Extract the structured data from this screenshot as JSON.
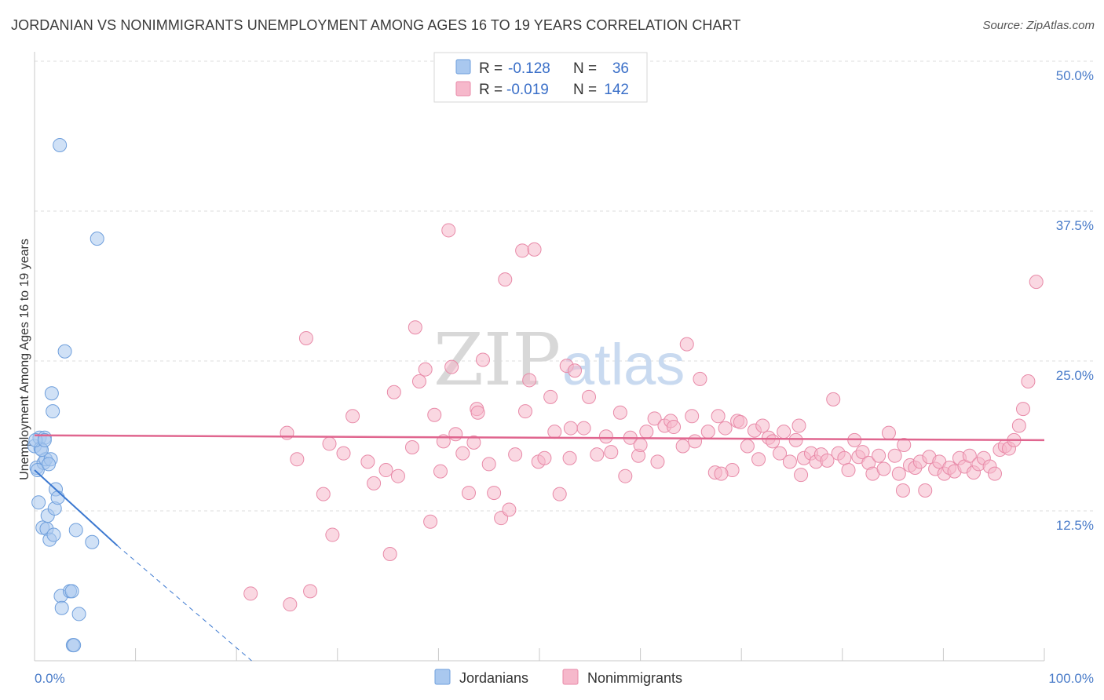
{
  "header": {
    "title": "JORDANIAN VS NONIMMIGRANTS UNEMPLOYMENT AMONG AGES 16 TO 19 YEARS CORRELATION CHART",
    "source": "Source: ZipAtlas.com"
  },
  "watermark": {
    "zip": "ZIP",
    "atlas": "atlas"
  },
  "legend_top": {
    "rows": [
      {
        "r_label": "R =",
        "r_value": "-0.128",
        "n_label": "N =",
        "n_value": "36",
        "color": "#a9c8ef",
        "stroke": "#6f9fdc"
      },
      {
        "r_label": "R =",
        "r_value": "-0.019",
        "n_label": "N =",
        "n_value": "142",
        "color": "#f6b8cb",
        "stroke": "#e88aa8"
      }
    ]
  },
  "legend_bottom": {
    "items": [
      {
        "label": "Jordanians",
        "color": "#a9c8ef",
        "stroke": "#6f9fdc"
      },
      {
        "label": "Nonimmigrants",
        "color": "#f6b8cb",
        "stroke": "#e88aa8"
      }
    ]
  },
  "chart_data": {
    "type": "scatter",
    "title": "JORDANIAN VS NONIMMIGRANTS UNEMPLOYMENT AMONG AGES 16 TO 19 YEARS CORRELATION CHART",
    "xlabel": "",
    "ylabel": "Unemployment Among Ages 16 to 19 years",
    "xlim": [
      0,
      100
    ],
    "ylim": [
      0,
      50
    ],
    "x_tick_labels": [
      "0.0%",
      "100.0%"
    ],
    "y_ticks": [
      12.5,
      25.0,
      37.5,
      50.0
    ],
    "y_tick_labels": [
      "12.5%",
      "25.0%",
      "37.5%",
      "50.0%"
    ],
    "grid": true,
    "legend_position": "top-center",
    "series": [
      {
        "name": "Jordanians",
        "color": "#a9c8ef",
        "stroke": "#6f9fdc",
        "trend": {
          "x0": 0.0,
          "y0": 15.9,
          "x1": 8.2,
          "y1": 9.6,
          "dash_to_x": 21.5,
          "dash_to_y": 0.0,
          "color": "#3b78d0"
        },
        "points": [
          [
            0.0,
            17.9
          ],
          [
            0.2,
            16.1
          ],
          [
            0.4,
            13.2
          ],
          [
            0.5,
            18.6
          ],
          [
            0.6,
            17.7
          ],
          [
            0.8,
            11.1
          ],
          [
            0.9,
            16.5
          ],
          [
            1.0,
            18.6
          ],
          [
            1.1,
            16.8
          ],
          [
            1.2,
            11.0
          ],
          [
            1.3,
            12.1
          ],
          [
            1.5,
            10.1
          ],
          [
            1.6,
            16.8
          ],
          [
            1.7,
            22.3
          ],
          [
            1.8,
            20.8
          ],
          [
            1.9,
            10.5
          ],
          [
            2.0,
            12.7
          ],
          [
            2.1,
            14.3
          ],
          [
            2.3,
            13.6
          ],
          [
            2.5,
            43.0
          ],
          [
            2.6,
            5.4
          ],
          [
            2.7,
            4.4
          ],
          [
            3.0,
            25.8
          ],
          [
            3.5,
            5.8
          ],
          [
            3.7,
            5.8
          ],
          [
            3.8,
            1.3
          ],
          [
            3.9,
            1.3
          ],
          [
            4.1,
            10.9
          ],
          [
            4.4,
            3.9
          ],
          [
            5.7,
            9.9
          ],
          [
            6.2,
            35.2
          ],
          [
            0.3,
            15.9
          ],
          [
            0.7,
            17.6
          ],
          [
            1.4,
            16.4
          ],
          [
            0.1,
            18.4
          ],
          [
            1.0,
            18.4
          ]
        ]
      },
      {
        "name": "Nonimmigrants",
        "color": "#f6b8cb",
        "stroke": "#e88aa8",
        "trend": {
          "x0": 0.0,
          "y0": 18.8,
          "x1": 100.0,
          "y1": 18.4,
          "color": "#e0668f"
        },
        "points": [
          [
            21.4,
            5.6
          ],
          [
            25.0,
            19.0
          ],
          [
            25.3,
            4.7
          ],
          [
            26.0,
            16.8
          ],
          [
            26.9,
            26.9
          ],
          [
            27.3,
            5.8
          ],
          [
            28.6,
            13.9
          ],
          [
            29.2,
            18.1
          ],
          [
            29.5,
            10.5
          ],
          [
            30.6,
            17.3
          ],
          [
            31.5,
            20.4
          ],
          [
            33.0,
            16.6
          ],
          [
            33.6,
            14.8
          ],
          [
            34.8,
            15.9
          ],
          [
            35.2,
            8.9
          ],
          [
            35.6,
            22.4
          ],
          [
            36.0,
            15.4
          ],
          [
            37.4,
            17.8
          ],
          [
            37.7,
            27.8
          ],
          [
            38.1,
            23.3
          ],
          [
            38.7,
            24.3
          ],
          [
            39.2,
            11.6
          ],
          [
            39.6,
            20.5
          ],
          [
            40.5,
            18.3
          ],
          [
            41.0,
            35.9
          ],
          [
            41.3,
            24.5
          ],
          [
            41.7,
            18.9
          ],
          [
            42.4,
            17.3
          ],
          [
            43.0,
            14.0
          ],
          [
            43.5,
            18.2
          ],
          [
            43.8,
            21.0
          ],
          [
            43.9,
            20.7
          ],
          [
            44.4,
            25.1
          ],
          [
            45.0,
            16.4
          ],
          [
            45.5,
            14.0
          ],
          [
            46.2,
            11.9
          ],
          [
            46.6,
            31.8
          ],
          [
            47.0,
            12.6
          ],
          [
            47.6,
            17.2
          ],
          [
            48.3,
            34.2
          ],
          [
            48.6,
            20.8
          ],
          [
            49.0,
            23.4
          ],
          [
            49.5,
            34.3
          ],
          [
            49.9,
            16.6
          ],
          [
            50.5,
            16.9
          ],
          [
            51.1,
            22.0
          ],
          [
            51.5,
            19.1
          ],
          [
            52.0,
            13.9
          ],
          [
            52.7,
            24.6
          ],
          [
            53.1,
            19.4
          ],
          [
            53.5,
            24.2
          ],
          [
            54.4,
            19.4
          ],
          [
            54.9,
            22.0
          ],
          [
            55.7,
            17.2
          ],
          [
            56.6,
            18.7
          ],
          [
            57.1,
            17.4
          ],
          [
            58.0,
            20.7
          ],
          [
            58.5,
            15.4
          ],
          [
            59.0,
            18.6
          ],
          [
            59.8,
            17.1
          ],
          [
            60.6,
            19.1
          ],
          [
            61.4,
            20.2
          ],
          [
            61.7,
            16.6
          ],
          [
            62.4,
            19.6
          ],
          [
            63.0,
            20.0
          ],
          [
            63.3,
            19.5
          ],
          [
            64.2,
            17.9
          ],
          [
            64.6,
            26.4
          ],
          [
            65.1,
            20.4
          ],
          [
            65.4,
            18.3
          ],
          [
            65.9,
            23.5
          ],
          [
            66.7,
            19.1
          ],
          [
            67.4,
            15.7
          ],
          [
            67.7,
            20.4
          ],
          [
            68.4,
            19.4
          ],
          [
            69.1,
            15.9
          ],
          [
            69.6,
            20.0
          ],
          [
            69.9,
            19.9
          ],
          [
            70.6,
            17.9
          ],
          [
            71.3,
            19.2
          ],
          [
            71.7,
            16.8
          ],
          [
            72.1,
            19.6
          ],
          [
            72.7,
            18.6
          ],
          [
            73.1,
            18.3
          ],
          [
            73.8,
            17.3
          ],
          [
            74.2,
            19.1
          ],
          [
            74.8,
            16.6
          ],
          [
            75.4,
            18.4
          ],
          [
            75.9,
            15.5
          ],
          [
            76.2,
            16.9
          ],
          [
            76.9,
            17.3
          ],
          [
            77.4,
            16.6
          ],
          [
            77.9,
            17.2
          ],
          [
            78.5,
            16.7
          ],
          [
            79.1,
            21.8
          ],
          [
            79.6,
            17.3
          ],
          [
            80.2,
            16.9
          ],
          [
            80.6,
            15.9
          ],
          [
            81.2,
            18.4
          ],
          [
            81.6,
            17.0
          ],
          [
            82.0,
            17.4
          ],
          [
            82.6,
            16.5
          ],
          [
            83.0,
            15.6
          ],
          [
            83.6,
            17.1
          ],
          [
            84.1,
            16.0
          ],
          [
            84.6,
            19.0
          ],
          [
            85.2,
            17.1
          ],
          [
            85.6,
            15.6
          ],
          [
            86.1,
            18.0
          ],
          [
            86.7,
            16.3
          ],
          [
            87.2,
            16.1
          ],
          [
            87.7,
            16.6
          ],
          [
            88.2,
            14.2
          ],
          [
            88.6,
            17.0
          ],
          [
            89.2,
            16.0
          ],
          [
            89.6,
            16.6
          ],
          [
            90.1,
            15.6
          ],
          [
            90.6,
            16.1
          ],
          [
            91.1,
            15.8
          ],
          [
            91.6,
            16.9
          ],
          [
            92.1,
            16.2
          ],
          [
            92.6,
            17.1
          ],
          [
            93.0,
            15.7
          ],
          [
            93.5,
            16.4
          ],
          [
            94.0,
            16.9
          ],
          [
            94.6,
            16.2
          ],
          [
            95.1,
            15.6
          ],
          [
            95.6,
            17.6
          ],
          [
            96.1,
            17.9
          ],
          [
            96.5,
            17.7
          ],
          [
            97.0,
            18.4
          ],
          [
            97.5,
            19.6
          ],
          [
            97.9,
            21.0
          ],
          [
            98.4,
            23.3
          ],
          [
            99.2,
            31.6
          ],
          [
            75.7,
            19.6
          ],
          [
            53.0,
            16.9
          ],
          [
            40.2,
            15.8
          ],
          [
            60.0,
            18.0
          ],
          [
            86.0,
            14.2
          ],
          [
            68.0,
            15.6
          ]
        ]
      }
    ]
  }
}
